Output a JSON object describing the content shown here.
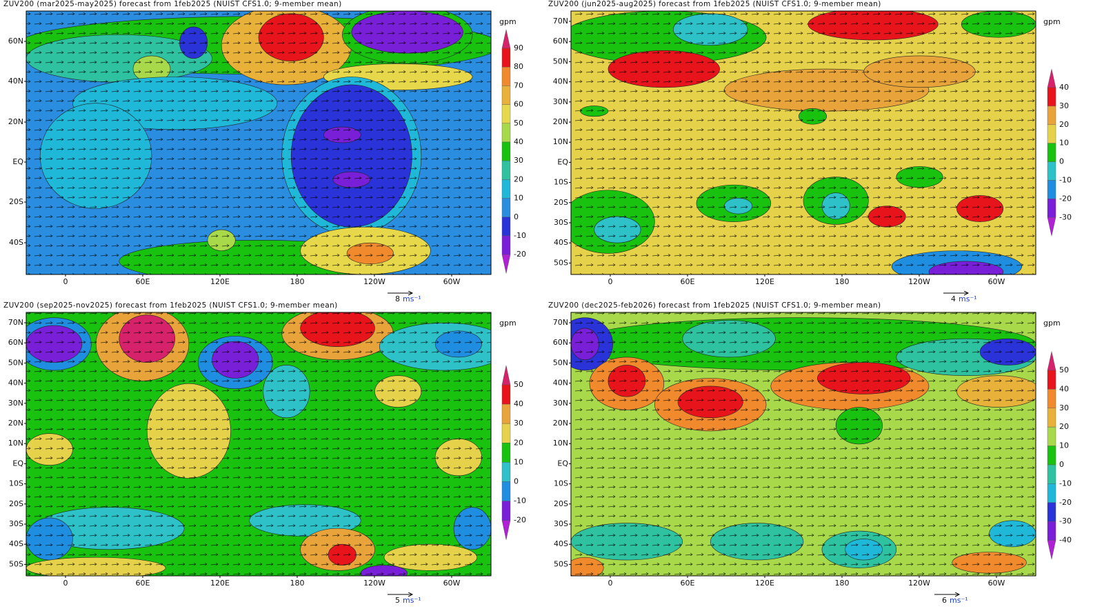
{
  "panels": [
    {
      "title": "ZUV200 (mar2025-may2025) forecast from 1feb2025 (NUIST CFS1.0; 9-member mean)",
      "lat_labels": [
        "60N",
        "40N",
        "20N",
        "EQ",
        "20S",
        "40S"
      ],
      "lon_labels": [
        "0",
        "60E",
        "120E",
        "180",
        "120W",
        "60W"
      ],
      "unit": "gpm",
      "levels": [
        90,
        80,
        70,
        60,
        50,
        40,
        30,
        20,
        10,
        0,
        -10,
        -20
      ],
      "colors": [
        "#d6226b",
        "#e8141c",
        "#f08a2c",
        "#e8b13a",
        "#e6d84a",
        "#a8d94a",
        "#19c20f",
        "#2ec2a0",
        "#1fb8d8",
        "#2a8de0",
        "#2a33d8",
        "#7a1fd8",
        "#b021d6"
      ],
      "vector_ref": {
        "value": 8,
        "unit": "ms⁻¹"
      }
    },
    {
      "title": "ZUV200 (jun2025-aug2025) forecast from 1feb2025 (NUIST CFS1.0; 9-member mean)",
      "lat_labels": [
        "70N",
        "60N",
        "50N",
        "40N",
        "30N",
        "20N",
        "10N",
        "EQ",
        "10S",
        "20S",
        "30S",
        "40S",
        "50S"
      ],
      "lon_labels": [
        "0",
        "60E",
        "120E",
        "180",
        "120W",
        "60W"
      ],
      "unit": "gpm",
      "levels": [
        40,
        30,
        20,
        10,
        0,
        -10,
        -20,
        -30
      ],
      "colors": [
        "#d6226b",
        "#e8141c",
        "#e8a33a",
        "#e6d24a",
        "#19c20f",
        "#2ec2c8",
        "#1f8de0",
        "#7a1fd8",
        "#b021d6"
      ],
      "vector_ref": {
        "value": 4,
        "unit": "ms⁻¹"
      }
    },
    {
      "title": "ZUV200 (sep2025-nov2025) forecast from 1feb2025 (NUIST CFS1.0; 9-member mean)",
      "lat_labels": [
        "70N",
        "60N",
        "50N",
        "40N",
        "30N",
        "20N",
        "10N",
        "EQ",
        "10S",
        "20S",
        "30S",
        "40S",
        "50S"
      ],
      "lon_labels": [
        "0",
        "60E",
        "120E",
        "180",
        "120W",
        "60W"
      ],
      "unit": "gpm",
      "levels": [
        50,
        40,
        30,
        20,
        10,
        0,
        -10,
        -20
      ],
      "colors": [
        "#d6226b",
        "#e8141c",
        "#e8a33a",
        "#e6d24a",
        "#19c20f",
        "#2ec2c8",
        "#1f8de0",
        "#7a1fd8",
        "#b021d6"
      ],
      "vector_ref": {
        "value": 5,
        "unit": "ms⁻¹"
      }
    },
    {
      "title": "ZUV200 (dec2025-feb2026) forecast from 1feb2025 (NUIST CFS1.0; 9-member mean)",
      "lat_labels": [
        "70N",
        "60N",
        "50N",
        "40N",
        "30N",
        "20N",
        "10N",
        "EQ",
        "10S",
        "20S",
        "30S",
        "40S",
        "50S"
      ],
      "lon_labels": [
        "0",
        "60E",
        "120E",
        "180",
        "120W",
        "60W"
      ],
      "unit": "gpm",
      "levels": [
        50,
        40,
        30,
        20,
        10,
        0,
        -10,
        -20,
        -30,
        -40
      ],
      "colors": [
        "#d6226b",
        "#e8141c",
        "#f08a2c",
        "#e8b13a",
        "#a8d94a",
        "#19c20f",
        "#2ec2a0",
        "#1fb8d8",
        "#2a33d8",
        "#7a1fd8",
        "#b021d6"
      ],
      "vector_ref": {
        "value": 6,
        "unit": "ms⁻¹"
      }
    }
  ]
}
